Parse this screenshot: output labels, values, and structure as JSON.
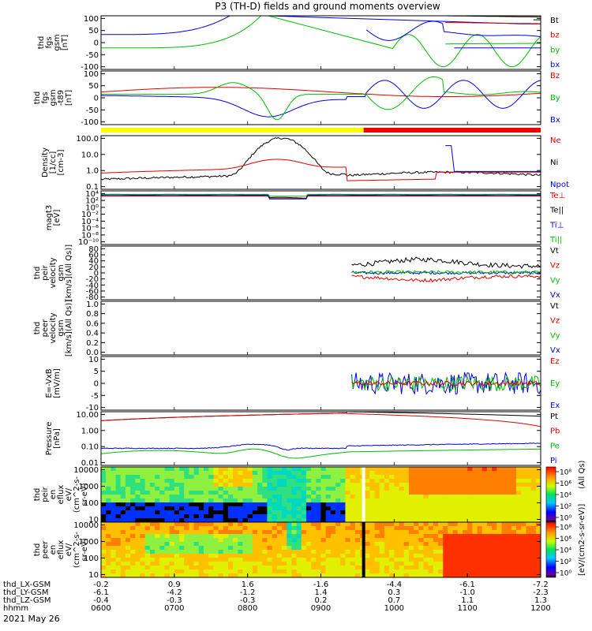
{
  "chart_data": {
    "type": "line",
    "title": "P3 (TH-D) fields and ground moments overview",
    "date": "2021 May 26",
    "time_axis": {
      "rows": [
        {
          "label": "thd_LX-GSM",
          "values": [
            "-0.2",
            "0.9",
            "1.6",
            "-1.6",
            "-4.4",
            "-6.1",
            "-7.2"
          ]
        },
        {
          "label": "thd_LY-GSM",
          "values": [
            "-6.1",
            "-4.2",
            "-1.2",
            "1.4",
            "0.3",
            "-1.0",
            "-2.3"
          ]
        },
        {
          "label": "thd_LZ-GSM",
          "values": [
            "-0.4",
            "-0.3",
            "-0.3",
            "0.2",
            "0.7",
            "1.1",
            "1.3"
          ]
        },
        {
          "label": "hhmm",
          "values": [
            "0600",
            "0700",
            "0800",
            "0900",
            "1000",
            "1100",
            "1200"
          ]
        }
      ]
    },
    "panels": [
      {
        "id": "fgs",
        "ylabel": [
          "thd",
          "fgs",
          "gsm",
          "[nT]"
        ],
        "yticks": [
          "100",
          "50",
          "0",
          "-50",
          "-100"
        ],
        "ylim": [
          -100,
          100
        ],
        "legend": [
          {
            "name": "Bt",
            "color": "#000000"
          },
          {
            "name": "bz",
            "color": "#dd0000"
          },
          {
            "name": "by",
            "color": "#00bb00"
          },
          {
            "name": "bx",
            "color": "#0000dd"
          }
        ]
      },
      {
        "id": "fgs_dsl",
        "ylabel": [
          "thd",
          "fgs",
          "gsm",
          "-t89",
          "[nT]"
        ],
        "yticks": [
          "100",
          "50",
          "0",
          "-50",
          "-100"
        ],
        "ylim": [
          -130,
          100
        ],
        "legend": [
          {
            "name": "Bz",
            "color": "#dd0000"
          },
          {
            "name": "By",
            "color": "#00bb00"
          },
          {
            "name": "Bx",
            "color": "#0000dd"
          }
        ]
      },
      {
        "id": "density",
        "ylabel": [
          "Density",
          "[1/cc]",
          "[cm-3]"
        ],
        "yticks": [
          "100.0",
          "10.0",
          "1.0",
          "0.1"
        ],
        "ylim": [
          0.05,
          300
        ],
        "legend": [
          {
            "name": "Ne",
            "color": "#dd0000"
          },
          {
            "name": "Ni",
            "color": "#000000"
          },
          {
            "name": "Npot",
            "color": "#0000dd"
          }
        ]
      },
      {
        "id": "temperature",
        "ylabel": [
          "magt3",
          "[eV]"
        ],
        "yticks": [
          "10⁴",
          "10²",
          "10⁰",
          "10⁻²",
          "10⁻⁴",
          "10⁻⁶",
          "10⁻⁸",
          "10⁻¹⁰"
        ],
        "legend": [
          {
            "name": "Te⊥",
            "color": "#dd0000"
          },
          {
            "name": "Te||",
            "color": "#000000"
          },
          {
            "name": "Ti⊥",
            "color": "#0000dd"
          },
          {
            "name": "Ti||",
            "color": "#00bb00"
          }
        ]
      },
      {
        "id": "peir_velocity",
        "ylabel": [
          "thd",
          "peir",
          "velocity",
          "gsm",
          "[km/s](All Qs)]"
        ],
        "yticks": [
          "80",
          "60",
          "40",
          "20",
          "0",
          "-20",
          "-40",
          "-60",
          "-80"
        ],
        "ylim": [
          -80,
          80
        ],
        "legend": [
          {
            "name": "Vt",
            "color": "#000000"
          },
          {
            "name": "Vz",
            "color": "#dd0000"
          },
          {
            "name": "Vy",
            "color": "#00bb00"
          },
          {
            "name": "Vx",
            "color": "#0000dd"
          }
        ]
      },
      {
        "id": "peer_velocity",
        "ylabel": [
          "thd",
          "peer",
          "velocity",
          "gsm",
          "[km/s](All Qs)]"
        ],
        "yticks": [
          "1.0",
          "0.8",
          "0.6",
          "0.4",
          "0.2",
          "0.0"
        ],
        "ylim": [
          0,
          1
        ],
        "legend": [
          {
            "name": "Vt",
            "color": "#000000"
          },
          {
            "name": "Vz",
            "color": "#dd0000"
          },
          {
            "name": "Vy",
            "color": "#00bb00"
          },
          {
            "name": "Vx",
            "color": "#0000dd"
          }
        ]
      },
      {
        "id": "efield",
        "ylabel": [
          "E=-VxB",
          "[mV/m]"
        ],
        "yticks": [
          "10",
          "5",
          "0",
          "-5",
          "-10"
        ],
        "ylim": [
          -12,
          12
        ],
        "legend": [
          {
            "name": "Ez",
            "color": "#dd0000"
          },
          {
            "name": "Ey",
            "color": "#00bb00"
          },
          {
            "name": "Ex",
            "color": "#0000dd"
          }
        ]
      },
      {
        "id": "pressure",
        "ylabel": [
          "Pressure",
          "[nPa]"
        ],
        "yticks": [
          "10.00",
          "1.00",
          "0.10",
          "0.01"
        ],
        "ylim": [
          0.005,
          20
        ],
        "legend": [
          {
            "name": "Pt",
            "color": "#000000"
          },
          {
            "name": "Pb",
            "color": "#dd0000"
          },
          {
            "name": "Pe",
            "color": "#00bb00"
          },
          {
            "name": "Pi",
            "color": "#0000dd"
          }
        ]
      },
      {
        "id": "peir_spec",
        "ylabel": [
          "thd",
          "peir",
          "en",
          "eflux",
          "eV/",
          "(cm^2-s-",
          "sr-eV)"
        ],
        "yticks": [
          "10000",
          "1000",
          "100",
          "10"
        ]
      },
      {
        "id": "peer_spec",
        "ylabel": [
          "thd",
          "peer",
          "en",
          "eflux",
          "eV/",
          "(cm^2-s-",
          "sr-eV)"
        ],
        "yticks": [
          "10000",
          "1000",
          "100",
          "10"
        ]
      }
    ],
    "mode_bar": [
      {
        "from": "0600",
        "to": "0935",
        "color": "#ffff00"
      },
      {
        "from": "0935",
        "to": "1200",
        "color": "#ee0000"
      }
    ],
    "colorbars": [
      {
        "label": "[eV/(cm2-s-sr-eV)]",
        "ticks": [
          "10⁸",
          "10⁶",
          "10⁴",
          "10²",
          "10⁰"
        ]
      },
      {
        "label": "[eV/(cm2-s-sr-eV)]",
        "ticks": [
          "10⁸",
          "10⁶",
          "10⁴",
          "10²",
          "10⁰"
        ]
      }
    ],
    "colorbar_sublabel": "(All Qs)",
    "colorbar_sublabel2": "(All Qs)"
  }
}
